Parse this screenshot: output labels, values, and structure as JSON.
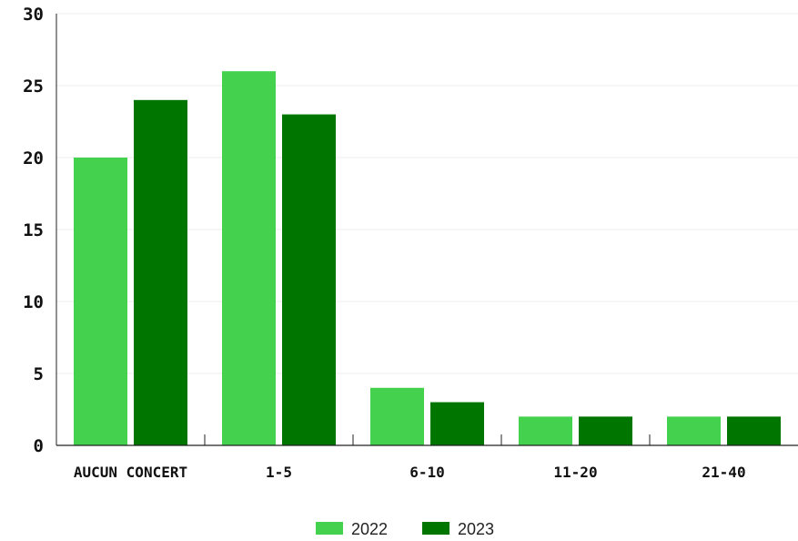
{
  "chart_data": {
    "type": "bar",
    "categories": [
      "AUCUN CONCERT",
      "1-5",
      "6-10",
      "11-20",
      "21-40"
    ],
    "series": [
      {
        "name": "2022",
        "values": [
          20,
          26,
          4,
          2,
          2
        ],
        "color": "#44d14e"
      },
      {
        "name": "2023",
        "values": [
          24,
          23,
          3,
          2,
          2
        ],
        "color": "#007500"
      }
    ],
    "title": "",
    "xlabel": "",
    "ylabel": "",
    "ylim": [
      0,
      30
    ],
    "yticks": [
      "0",
      "5",
      "10",
      "15",
      "20",
      "25",
      "30"
    ],
    "grid": true,
    "legend_position": "bottom-center"
  }
}
